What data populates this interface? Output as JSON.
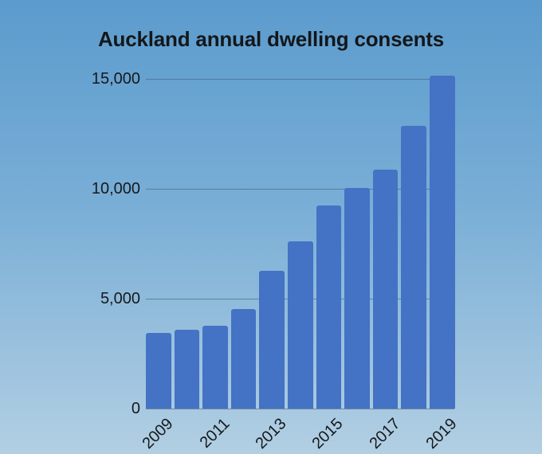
{
  "title": "Auckland annual dwelling consents",
  "chart_data": {
    "type": "bar",
    "title": "Auckland annual dwelling consents",
    "categories": [
      "2009",
      "2010",
      "2011",
      "2012",
      "2013",
      "2014",
      "2015",
      "2016",
      "2017",
      "2018",
      "2019"
    ],
    "values": [
      3450,
      3580,
      3770,
      4530,
      6270,
      7600,
      9230,
      10040,
      10880,
      12860,
      15150
    ],
    "xlabel": "",
    "ylabel": "",
    "ylim": [
      0,
      15500
    ],
    "y_ticks": [
      {
        "label": "0",
        "value": 0
      },
      {
        "label": "5,000",
        "value": 5000
      },
      {
        "label": "10,000",
        "value": 10000
      },
      {
        "label": "15,000",
        "value": 15000
      }
    ],
    "x_ticks": [
      {
        "label": "2009",
        "bar_index": 0
      },
      {
        "label": "2011",
        "bar_index": 2
      },
      {
        "label": "2013",
        "bar_index": 4
      },
      {
        "label": "2015",
        "bar_index": 6
      },
      {
        "label": "2017",
        "bar_index": 8
      },
      {
        "label": "2019",
        "bar_index": 10
      }
    ],
    "grid": "horizontal",
    "legend": "none",
    "bar_color": "#4472c4",
    "gridline_color": "rgba(58,90,110,0.55)",
    "text_color": "#16191c",
    "background_gradient_top": "#5b9bcd",
    "background_gradient_bottom": "#b2cfe3"
  }
}
